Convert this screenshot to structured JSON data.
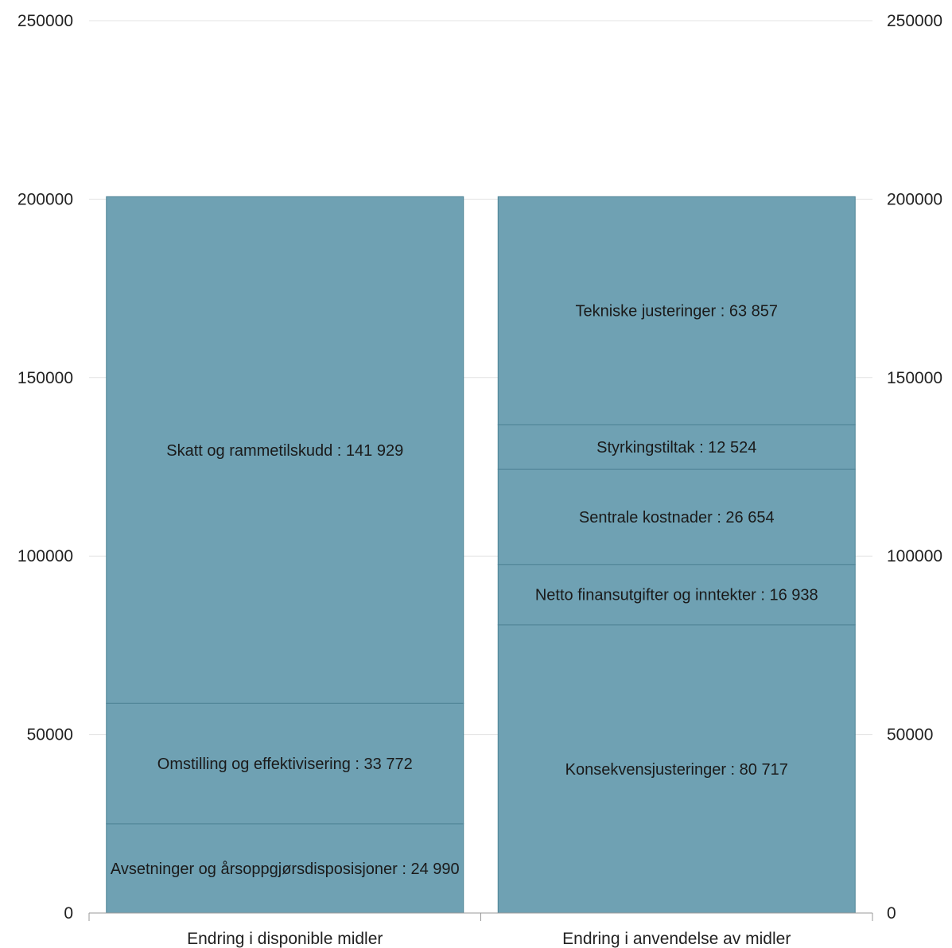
{
  "chart_data": {
    "type": "bar",
    "stacked": true,
    "title": "",
    "xlabel": "",
    "ylabel": "",
    "ylim": [
      0,
      250000
    ],
    "y_ticks": [
      0,
      50000,
      100000,
      150000,
      200000,
      250000
    ],
    "y_tick_labels": [
      "0",
      "50000",
      "100000",
      "150000",
      "200000",
      "250000"
    ],
    "grid": true,
    "axes": "left-and-right",
    "bar_color": "#6fa1b3",
    "grid_color": "#e3e3e3",
    "categories": [
      "Endring i disponible midler",
      "Endring i anvendelse av midler"
    ],
    "stacks": [
      {
        "category": "Endring i disponible midler",
        "segments": [
          {
            "label": "Avsetninger og årsoppgjørsdisposisjoner : 24 990",
            "value": 24990
          },
          {
            "label": "Omstilling og effektivisering : 33 772",
            "value": 33772
          },
          {
            "label": "Skatt og rammetilskudd : 141 929",
            "value": 141929
          }
        ]
      },
      {
        "category": "Endring i anvendelse av midler",
        "segments": [
          {
            "label": "Konsekvensjusteringer : 80 717",
            "value": 80717
          },
          {
            "label": "Netto finansutgifter og inntekter : 16 938",
            "value": 16938
          },
          {
            "label": "Sentrale kostnader : 26 654",
            "value": 26654
          },
          {
            "label": "Styrkingstiltak : 12 524",
            "value": 12524
          },
          {
            "label": "Tekniske justeringer : 63 857",
            "value": 63857
          }
        ]
      }
    ]
  }
}
